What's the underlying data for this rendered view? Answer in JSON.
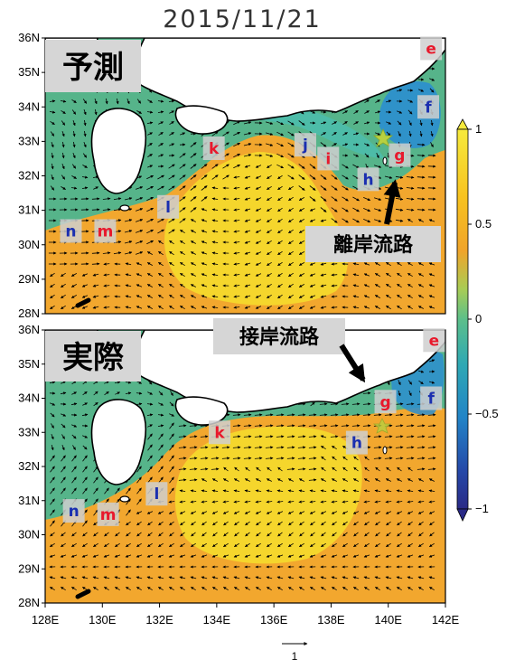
{
  "date": "2015/11/21",
  "colors": {
    "red_label": "#e8192c",
    "blue_label": "#1a2fb0",
    "star": "#b8d040",
    "land": "#ffffff"
  },
  "lon_labels": [
    "128E",
    "130E",
    "132E",
    "134E",
    "136E",
    "138E",
    "140E",
    "142E"
  ],
  "lat_labels": [
    "36N",
    "35N",
    "34N",
    "33N",
    "32N",
    "31N",
    "30N",
    "29N",
    "28N"
  ],
  "colorbar": {
    "range": [
      -1,
      1
    ],
    "tick_labels": [
      "1",
      "0.5",
      "0",
      "−0.5",
      "−1"
    ],
    "colormap": "blue-teal-green-yellow-orange (sea surface height, m)"
  },
  "reference_vector_label": "1",
  "panels": [
    {
      "title": "予測",
      "annotation": "離岸流路",
      "points": [
        {
          "id": "e",
          "label": "e",
          "lon": 141.5,
          "lat": 35.7,
          "color": "red"
        },
        {
          "id": "f",
          "label": "f",
          "lon": 141.4,
          "lat": 34.0,
          "color": "blue"
        },
        {
          "id": "g",
          "label": "g",
          "lon": 140.4,
          "lat": 32.6,
          "color": "red"
        },
        {
          "id": "h",
          "label": "h",
          "lon": 139.3,
          "lat": 31.9,
          "color": "blue"
        },
        {
          "id": "i",
          "label": "i",
          "lon": 137.9,
          "lat": 32.5,
          "color": "red"
        },
        {
          "id": "j",
          "label": "j",
          "lon": 137.1,
          "lat": 32.9,
          "color": "blue"
        },
        {
          "id": "k",
          "label": "k",
          "lon": 133.9,
          "lat": 32.8,
          "color": "red"
        },
        {
          "id": "l",
          "label": "l",
          "lon": 132.3,
          "lat": 31.1,
          "color": "blue"
        },
        {
          "id": "m",
          "label": "m",
          "lon": 130.1,
          "lat": 30.4,
          "color": "red"
        },
        {
          "id": "n",
          "label": "n",
          "lon": 128.9,
          "lat": 30.4,
          "color": "blue"
        }
      ]
    },
    {
      "title": "実際",
      "annotation": "接岸流路",
      "points": [
        {
          "id": "e",
          "label": "e",
          "lon": 141.6,
          "lat": 35.7,
          "color": "red"
        },
        {
          "id": "f",
          "label": "f",
          "lon": 141.5,
          "lat": 34.0,
          "color": "blue"
        },
        {
          "id": "g",
          "label": "g",
          "lon": 139.9,
          "lat": 33.9,
          "color": "red"
        },
        {
          "id": "h",
          "label": "h",
          "lon": 138.9,
          "lat": 32.7,
          "color": "blue"
        },
        {
          "id": "k",
          "label": "k",
          "lon": 134.1,
          "lat": 33.0,
          "color": "red"
        },
        {
          "id": "l",
          "label": "l",
          "lon": 131.9,
          "lat": 31.2,
          "color": "blue"
        },
        {
          "id": "m",
          "label": "m",
          "lon": 130.2,
          "lat": 30.6,
          "color": "red"
        },
        {
          "id": "n",
          "label": "n",
          "lon": 129.0,
          "lat": 30.7,
          "color": "blue"
        }
      ]
    }
  ]
}
